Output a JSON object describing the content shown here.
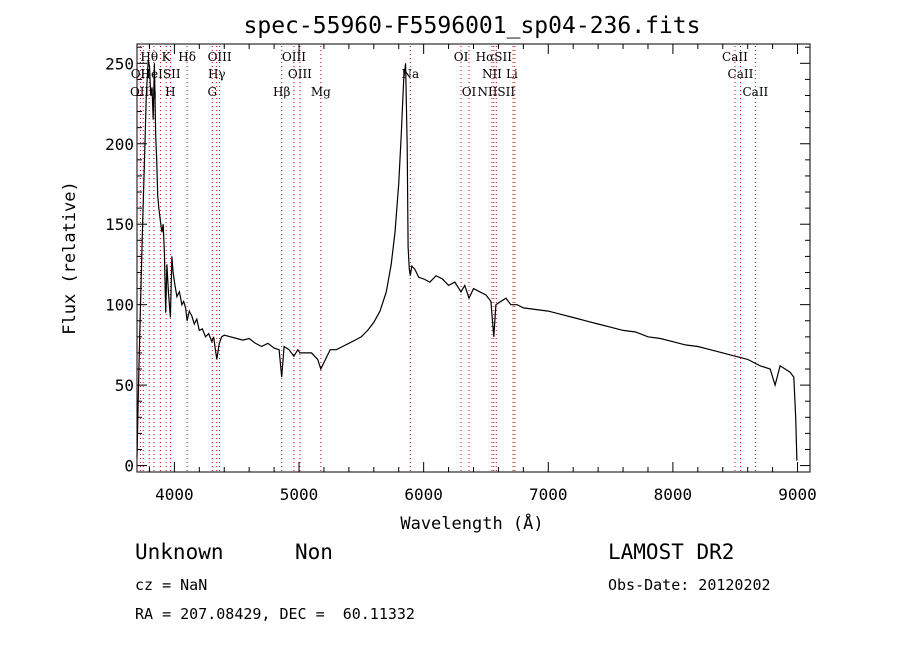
{
  "chart_data": {
    "type": "line",
    "title": "spec-55960-F5596001_sp04-236.fits",
    "xlabel": "Wavelength (Å)",
    "ylabel": "Flux (relative)",
    "xlim": [
      3700,
      9100
    ],
    "ylim": [
      -4,
      262
    ],
    "x_ticks": [
      4000,
      5000,
      6000,
      7000,
      8000,
      9000
    ],
    "y_ticks": [
      0,
      50,
      100,
      150,
      200,
      250
    ],
    "grid": false,
    "series": [
      {
        "color": "#000000",
        "points": [
          [
            3700,
            5
          ],
          [
            3715,
            60
          ],
          [
            3730,
            105
          ],
          [
            3745,
            150
          ],
          [
            3760,
            190
          ],
          [
            3775,
            230
          ],
          [
            3790,
            252
          ],
          [
            3800,
            248
          ],
          [
            3810,
            230
          ],
          [
            3820,
            235
          ],
          [
            3830,
            215
          ],
          [
            3840,
            250
          ],
          [
            3850,
            205
          ],
          [
            3858,
            190
          ],
          [
            3866,
            168
          ],
          [
            3875,
            160
          ],
          [
            3888,
            152
          ],
          [
            3900,
            145
          ],
          [
            3910,
            150
          ],
          [
            3920,
            132
          ],
          [
            3930,
            95
          ],
          [
            3940,
            125
          ],
          [
            3952,
            108
          ],
          [
            3968,
            92
          ],
          [
            3980,
            130
          ],
          [
            3990,
            120
          ],
          [
            4005,
            112
          ],
          [
            4020,
            105
          ],
          [
            4040,
            108
          ],
          [
            4060,
            100
          ],
          [
            4075,
            102
          ],
          [
            4090,
            98
          ],
          [
            4102,
            90
          ],
          [
            4120,
            96
          ],
          [
            4140,
            93
          ],
          [
            4160,
            88
          ],
          [
            4180,
            91
          ],
          [
            4200,
            84
          ],
          [
            4225,
            85
          ],
          [
            4250,
            80
          ],
          [
            4275,
            82
          ],
          [
            4300,
            77
          ],
          [
            4315,
            80
          ],
          [
            4340,
            66
          ],
          [
            4360,
            76
          ],
          [
            4380,
            80
          ],
          [
            4400,
            81
          ],
          [
            4450,
            80
          ],
          [
            4500,
            79
          ],
          [
            4550,
            78
          ],
          [
            4600,
            79
          ],
          [
            4650,
            76
          ],
          [
            4700,
            74
          ],
          [
            4750,
            76
          ],
          [
            4800,
            73
          ],
          [
            4840,
            72
          ],
          [
            4861,
            55
          ],
          [
            4880,
            74
          ],
          [
            4920,
            72
          ],
          [
            4959,
            68
          ],
          [
            4990,
            72
          ],
          [
            5007,
            70
          ],
          [
            5050,
            70
          ],
          [
            5100,
            70
          ],
          [
            5150,
            66
          ],
          [
            5175,
            60
          ],
          [
            5200,
            64
          ],
          [
            5250,
            72
          ],
          [
            5300,
            72
          ],
          [
            5350,
            74
          ],
          [
            5400,
            76
          ],
          [
            5450,
            78
          ],
          [
            5500,
            80
          ],
          [
            5550,
            84
          ],
          [
            5600,
            89
          ],
          [
            5650,
            96
          ],
          [
            5700,
            108
          ],
          [
            5740,
            125
          ],
          [
            5770,
            145
          ],
          [
            5800,
            175
          ],
          [
            5820,
            205
          ],
          [
            5840,
            240
          ],
          [
            5855,
            250
          ],
          [
            5868,
            198
          ],
          [
            5875,
            136
          ],
          [
            5885,
            122
          ],
          [
            5893,
            118
          ],
          [
            5905,
            124
          ],
          [
            5930,
            122
          ],
          [
            5960,
            117
          ],
          [
            6000,
            116
          ],
          [
            6050,
            114
          ],
          [
            6100,
            118
          ],
          [
            6150,
            116
          ],
          [
            6200,
            112
          ],
          [
            6250,
            114
          ],
          [
            6300,
            108
          ],
          [
            6330,
            112
          ],
          [
            6364,
            104
          ],
          [
            6400,
            110
          ],
          [
            6450,
            108
          ],
          [
            6500,
            106
          ],
          [
            6540,
            102
          ],
          [
            6563,
            80
          ],
          [
            6580,
            100
          ],
          [
            6620,
            102
          ],
          [
            6660,
            104
          ],
          [
            6700,
            100
          ],
          [
            6750,
            100
          ],
          [
            6800,
            98
          ],
          [
            6900,
            97
          ],
          [
            7000,
            96
          ],
          [
            7100,
            94
          ],
          [
            7200,
            92
          ],
          [
            7300,
            90
          ],
          [
            7400,
            88
          ],
          [
            7500,
            86
          ],
          [
            7600,
            84
          ],
          [
            7700,
            83
          ],
          [
            7800,
            80
          ],
          [
            7900,
            79
          ],
          [
            8000,
            77
          ],
          [
            8100,
            75
          ],
          [
            8200,
            74
          ],
          [
            8300,
            72
          ],
          [
            8400,
            70
          ],
          [
            8500,
            68
          ],
          [
            8600,
            66
          ],
          [
            8700,
            62
          ],
          [
            8780,
            60
          ],
          [
            8820,
            50
          ],
          [
            8860,
            62
          ],
          [
            8900,
            60
          ],
          [
            8940,
            58
          ],
          [
            8970,
            55
          ],
          [
            8985,
            30
          ],
          [
            8995,
            3
          ]
        ]
      }
    ],
    "line_markers": {
      "top_row": [
        {
          "label": "Hθ",
          "x": 3798
        },
        {
          "label": "K",
          "x": 3934
        },
        {
          "label": "Hδ",
          "x": 4102
        },
        {
          "label": "OIII",
          "x": 4363
        },
        {
          "label": "OIII",
          "x": 4959
        },
        {
          "label": "OI",
          "x": 6300
        },
        {
          "label": "HαSII",
          "x": 6563
        },
        {
          "label": "CaII",
          "x": 8498
        }
      ],
      "middle_row": [
        {
          "label": "OII",
          "x": 3727
        },
        {
          "label": "HeISII",
          "x": 3889
        },
        {
          "label": "Hγ",
          "x": 4340
        },
        {
          "label": "OIII",
          "x": 5007
        },
        {
          "label": "Na",
          "x": 5893
        },
        {
          "label": "NII",
          "x": 6548
        },
        {
          "label": "Li",
          "x": 6708
        },
        {
          "label": "CaII",
          "x": 8542
        }
      ],
      "bottom_row": [
        {
          "label": "OIIη",
          "x": 3750
        },
        {
          "label": "H",
          "x": 3968
        },
        {
          "label": "G",
          "x": 4304
        },
        {
          "label": "Hβ",
          "x": 4861
        },
        {
          "label": "Mg",
          "x": 5175
        },
        {
          "label": "OI",
          "x": 6364
        },
        {
          "label": "NIISII",
          "x": 6583
        },
        {
          "label": "CaII",
          "x": 8662
        }
      ],
      "line_wavelengths": [
        3727,
        3750,
        3798,
        3835,
        3889,
        3934,
        3968,
        4102,
        4304,
        4340,
        4363,
        4861,
        4959,
        5007,
        5175,
        5893,
        6300,
        6364,
        6548,
        6563,
        6583,
        6717,
        6731,
        8498,
        8542,
        8662
      ],
      "marker_color": "#cc0000"
    }
  },
  "info": {
    "class_label": "Unknown",
    "subclass_label": "Non",
    "survey": "LAMOST DR2",
    "cz": "cz = NaN",
    "obs_date": "Obs-Date: 20120202",
    "coords": "RA = 207.08429, DEC =  60.11332"
  }
}
